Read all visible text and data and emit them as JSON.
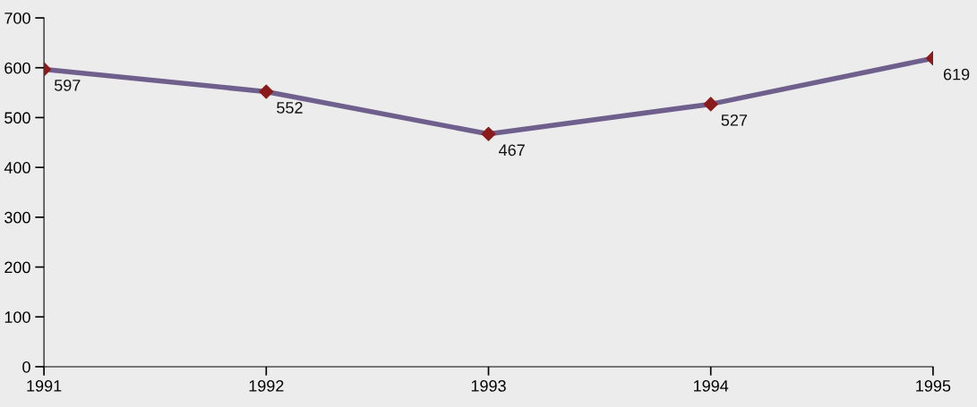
{
  "chart_data": {
    "type": "line",
    "x": [
      1991,
      1992,
      1993,
      1994,
      1995
    ],
    "series": [
      {
        "color": "#6e5f8c",
        "values": [
          597,
          552,
          467,
          527,
          619
        ],
        "marker": "none"
      },
      {
        "type": "scatter",
        "color": "#8b1a1a",
        "values": [
          597,
          552,
          467,
          527,
          619
        ],
        "marker": "diamond",
        "value_labels": [
          "597",
          "552",
          "467",
          "527",
          "619"
        ]
      }
    ],
    "xlim": [
      1991,
      1995
    ],
    "xticks": [
      1991,
      1992,
      1993,
      1994,
      1995
    ],
    "ylim": [
      0,
      700
    ],
    "yticks": [
      0,
      100,
      200,
      300,
      400,
      500,
      600,
      700
    ],
    "grid": false,
    "legend": false
  }
}
